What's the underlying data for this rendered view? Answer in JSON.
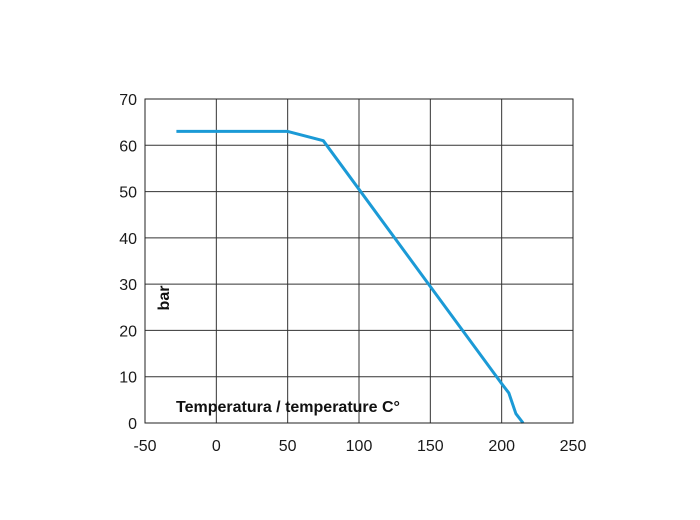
{
  "chart_data": {
    "type": "line",
    "title": "",
    "xlabel": "Temperatura / temperature C°",
    "ylabel": "bar",
    "xlim": [
      -50,
      250
    ],
    "ylim": [
      0,
      70
    ],
    "xticks": [
      -50,
      0,
      50,
      100,
      150,
      200,
      250
    ],
    "yticks": [
      0,
      10,
      20,
      30,
      40,
      50,
      60,
      70
    ],
    "grid": true,
    "legend": "none",
    "series": [
      {
        "color": "#1b9ad6",
        "x": [
          -28,
          50,
          75,
          100,
          150,
          200,
          205,
          210,
          215
        ],
        "y": [
          63,
          63,
          61,
          50.5,
          29.5,
          8.5,
          6.5,
          2,
          0
        ]
      }
    ]
  }
}
